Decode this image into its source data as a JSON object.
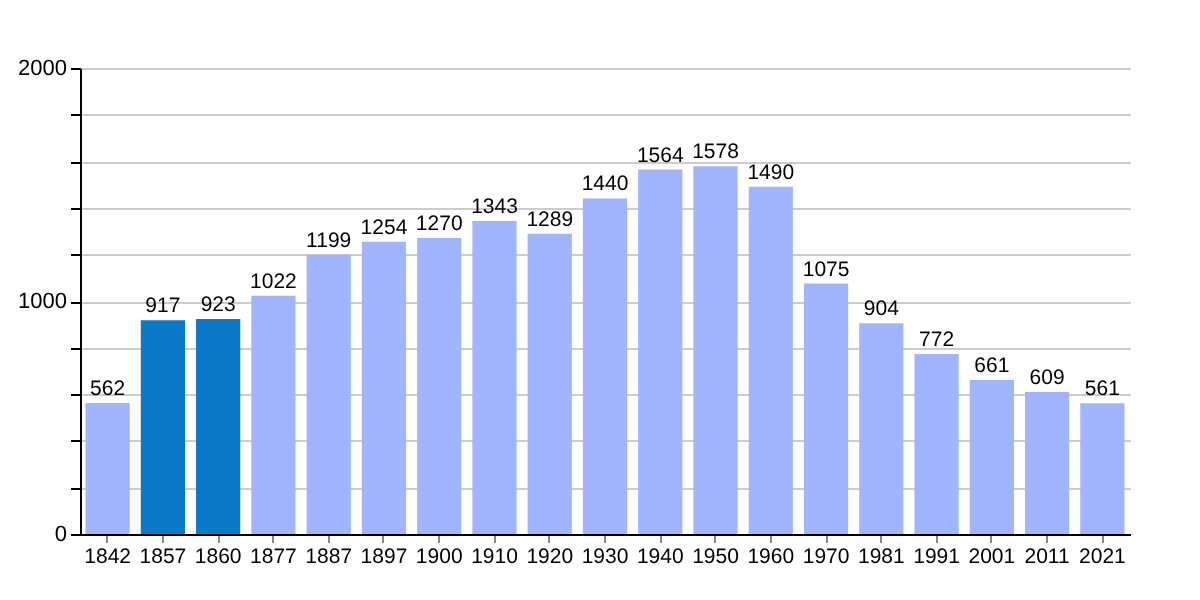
{
  "chart_data": {
    "type": "bar",
    "categories": [
      "1842",
      "1857",
      "1860",
      "1877",
      "1887",
      "1897",
      "1900",
      "1910",
      "1920",
      "1930",
      "1940",
      "1950",
      "1960",
      "1970",
      "1981",
      "1991",
      "2001",
      "2011",
      "2021"
    ],
    "values": [
      562,
      917,
      923,
      1022,
      1199,
      1254,
      1270,
      1343,
      1289,
      1440,
      1564,
      1578,
      1490,
      1075,
      904,
      772,
      661,
      609,
      561
    ],
    "colors": [
      "#a0b4ff",
      "#0a7ac8",
      "#0a7ac8",
      "#a0b4ff",
      "#a0b4ff",
      "#a0b4ff",
      "#a0b4ff",
      "#a0b4ff",
      "#a0b4ff",
      "#a0b4ff",
      "#a0b4ff",
      "#a0b4ff",
      "#a0b4ff",
      "#a0b4ff",
      "#a0b4ff",
      "#a0b4ff",
      "#a0b4ff",
      "#a0b4ff",
      "#a0b4ff"
    ],
    "ylim": [
      0,
      2000
    ],
    "yticks": [
      0,
      {
        "value": 200,
        "label": null
      },
      {
        "value": 400,
        "label": null
      },
      {
        "value": 600,
        "label": null
      },
      {
        "value": 800,
        "label": null
      },
      1000,
      {
        "value": 1200,
        "label": null
      },
      {
        "value": 1400,
        "label": null
      },
      {
        "value": 1600,
        "label": null
      },
      {
        "value": 1800,
        "label": null
      },
      2000
    ],
    "grid": "y",
    "data_labels": true
  }
}
